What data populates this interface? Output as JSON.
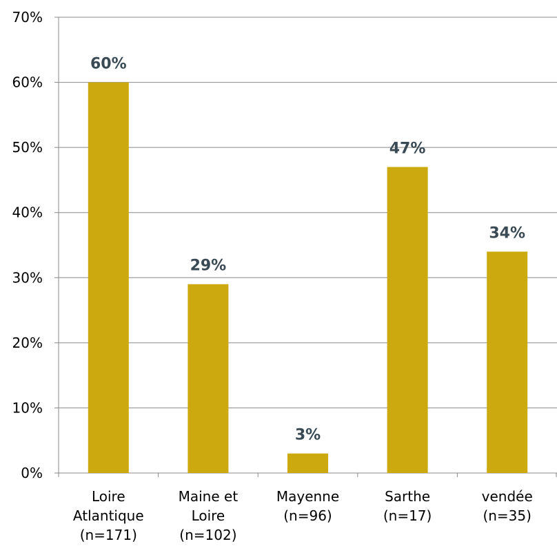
{
  "chart_data": {
    "type": "bar",
    "categories": [
      [
        "Loire",
        "Atlantique",
        "(n=171)"
      ],
      [
        "Maine et",
        "Loire",
        "(n=102)"
      ],
      [
        "Mayenne",
        "(n=96)"
      ],
      [
        "Sarthe",
        "(n=17)"
      ],
      [
        "vendée",
        "(n=35)"
      ]
    ],
    "values": [
      60,
      29,
      3,
      47,
      34
    ],
    "data_labels": [
      "60%",
      "29%",
      "3%",
      "47%",
      "34%"
    ],
    "y_ticks": [
      "0%",
      "10%",
      "20%",
      "30%",
      "40%",
      "50%",
      "60%",
      "70%"
    ],
    "ylim": [
      0,
      70
    ],
    "grid": true,
    "legend": "none",
    "colors": {
      "bar": "#CCAA0F",
      "data_label": "#3A4A55",
      "grid": "#888888",
      "axis": "#888888"
    }
  }
}
